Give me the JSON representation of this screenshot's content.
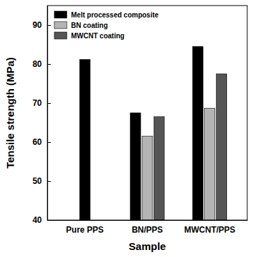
{
  "chart_data": {
    "type": "bar",
    "x_label": "Sample",
    "y_label": "Tensile strength (MPa)",
    "categories": [
      "Pure PPS",
      "BN/PPS",
      "MWCNT/PPS"
    ],
    "series": [
      {
        "name": "Melt processed composite",
        "color": "#000000",
        "values": [
          81.2,
          67.5,
          84.5
        ]
      },
      {
        "name": "BN coating",
        "color": "#b4b4b4",
        "values": [
          null,
          61.5,
          68.7
        ]
      },
      {
        "name": "MWCNT coating",
        "color": "#555555",
        "values": [
          null,
          66.5,
          77.5
        ]
      }
    ],
    "ylim": [
      40,
      95
    ],
    "yticks": [
      40,
      50,
      60,
      70,
      80,
      90
    ],
    "legend": "upper left",
    "grid": false
  }
}
